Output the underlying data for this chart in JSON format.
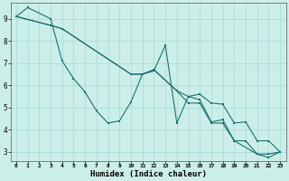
{
  "xlabel": "Humidex (Indice chaleur)",
  "bg_color": "#cceee8",
  "grid_color": "#aaddda",
  "line_color": "#1a7070",
  "xlim": [
    -0.5,
    23.5
  ],
  "ylim": [
    2.6,
    9.7
  ],
  "xticks": [
    0,
    1,
    2,
    3,
    4,
    5,
    6,
    7,
    8,
    9,
    10,
    11,
    12,
    13,
    14,
    15,
    16,
    17,
    18,
    19,
    20,
    21,
    22,
    23
  ],
  "yticks": [
    3,
    4,
    5,
    6,
    7,
    8,
    9
  ],
  "line1_x": [
    0,
    1,
    3,
    4,
    5,
    6,
    7,
    8,
    9,
    10,
    11,
    12,
    13,
    14,
    15,
    16,
    17,
    18,
    19,
    20,
    21,
    22,
    23
  ],
  "line1_y": [
    9.1,
    9.5,
    9.0,
    7.1,
    6.3,
    5.7,
    4.85,
    4.3,
    4.4,
    5.25,
    6.5,
    6.65,
    7.8,
    4.3,
    5.5,
    5.35,
    4.35,
    4.45,
    3.5,
    3.5,
    2.9,
    2.9,
    3.0
  ],
  "line2_x": [
    0,
    3,
    4,
    10,
    11,
    12,
    14,
    15,
    16,
    17,
    18,
    19,
    20,
    21,
    22,
    23
  ],
  "line2_y": [
    9.1,
    8.7,
    8.55,
    6.5,
    6.5,
    6.7,
    5.75,
    5.5,
    5.6,
    5.2,
    5.15,
    4.3,
    4.35,
    3.5,
    3.5,
    3.0
  ],
  "line3_x": [
    0,
    3,
    4,
    10,
    11,
    12,
    14,
    15,
    16,
    17,
    18,
    19,
    21,
    22,
    23
  ],
  "line3_y": [
    9.1,
    8.7,
    8.55,
    6.5,
    6.5,
    6.7,
    5.75,
    5.2,
    5.2,
    4.3,
    4.3,
    3.5,
    2.9,
    2.75,
    3.0
  ]
}
